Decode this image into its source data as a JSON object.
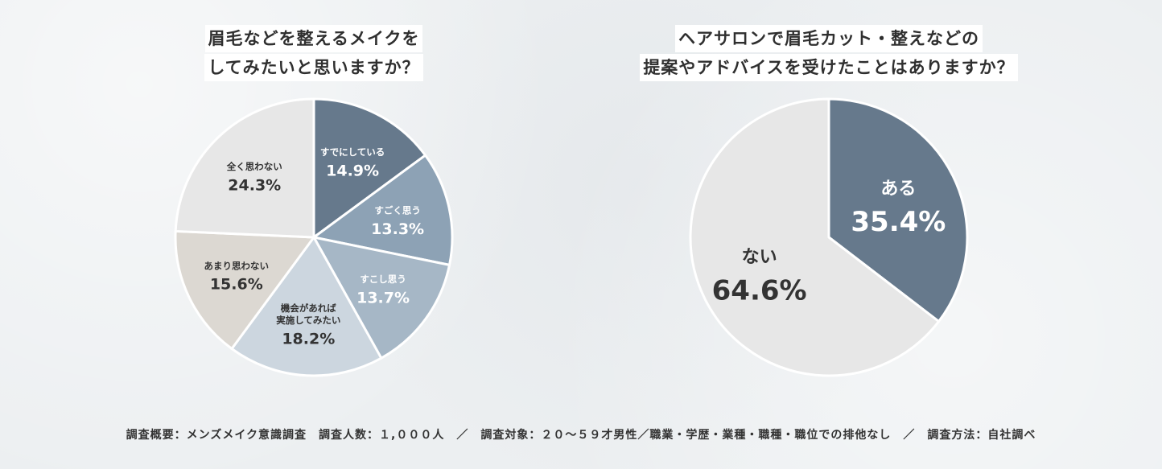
{
  "chart_data": [
    {
      "type": "pie",
      "title_lines": [
        "眉毛などを整えるメイクを",
        "してみたいと思いますか？"
      ],
      "slices": [
        {
          "label_lines": [
            "すでにしている"
          ],
          "value": 14.9,
          "value_label": "14.9%",
          "color": "#66798c",
          "text_color": "#ffffff"
        },
        {
          "label_lines": [
            "すごく思う"
          ],
          "value": 13.3,
          "value_label": "13.3%",
          "color": "#8da2b5",
          "text_color": "#ffffff"
        },
        {
          "label_lines": [
            "すこし思う"
          ],
          "value": 13.7,
          "value_label": "13.7%",
          "color": "#a6b7c6",
          "text_color": "#ffffff"
        },
        {
          "label_lines": [
            "機会があれば",
            "実施してみたい"
          ],
          "value": 18.2,
          "value_label": "18.2%",
          "color": "#ccd6df",
          "text_color": "#333333"
        },
        {
          "label_lines": [
            "あまり思わない"
          ],
          "value": 15.6,
          "value_label": "15.6%",
          "color": "#dcd8d2",
          "text_color": "#333333"
        },
        {
          "label_lines": [
            "全く思わない"
          ],
          "value": 24.3,
          "value_label": "24.3%",
          "color": "#e7e7e7",
          "text_color": "#333333"
        }
      ],
      "unit": "%"
    },
    {
      "type": "pie",
      "title_lines": [
        "ヘアサロンで眉毛カット・整えなどの",
        "提案やアドバイスを受けたことはありますか？"
      ],
      "slices": [
        {
          "label_lines": [
            "ある"
          ],
          "value": 35.4,
          "value_label": "35.4%",
          "color": "#66798c",
          "text_color": "#ffffff"
        },
        {
          "label_lines": [
            "ない"
          ],
          "value": 64.6,
          "value_label": "64.6%",
          "color": "#e7e7e7",
          "text_color": "#333333"
        }
      ],
      "unit": "%"
    }
  ],
  "footer": {
    "text": "調査概要：メンズメイク意識調査　調査人数：１,０００人　／　調査対象：２０〜５９才男性／職業・学歴・業種・職種・職位での排他なし　／　調査方法：自社調べ"
  }
}
